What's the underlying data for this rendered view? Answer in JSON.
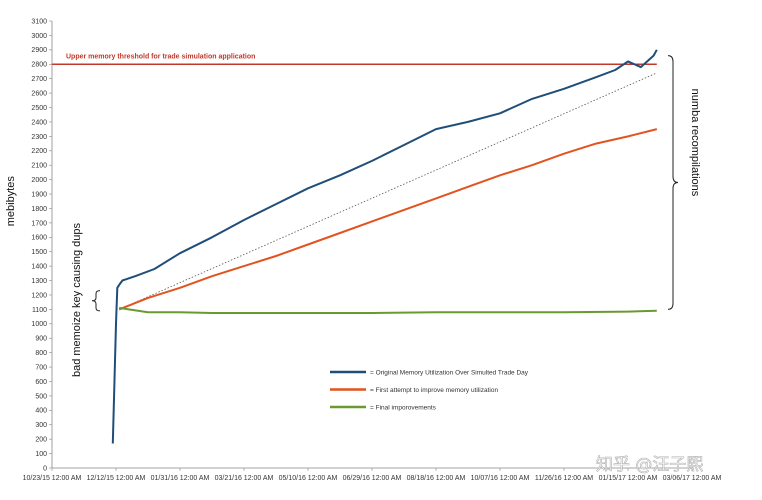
{
  "chart_data": {
    "type": "line",
    "ylabel": "mebibytes",
    "ylim": [
      0,
      3100
    ],
    "y_ticks": [
      0,
      100,
      200,
      300,
      400,
      500,
      600,
      700,
      800,
      900,
      1000,
      1100,
      1200,
      1300,
      1400,
      1500,
      1600,
      1700,
      1800,
      1900,
      2000,
      2100,
      2200,
      2300,
      2400,
      2500,
      2600,
      2700,
      2800,
      2900,
      3000,
      3100
    ],
    "x_ticks": [
      "10/23/15 12:00 AM",
      "12/12/15 12:00 AM",
      "01/31/16 12:00 AM",
      "03/21/16 12:00 AM",
      "05/10/16 12:00 AM",
      "06/29/16 12:00 AM",
      "08/18/16 12:00 AM",
      "10/07/16 12:00 AM",
      "11/26/16 12:00 AM",
      "01/15/17 12:00 AM",
      "03/06/17 12:00 AM"
    ],
    "threshold": {
      "value": 2800,
      "label": "Upper memory threshold for trade simulation application",
      "color": "#c0392b"
    },
    "series": [
      {
        "name": "= Original Memory Utilization Over Simulted Trade Day",
        "color": "#1f4e79",
        "x": [
          0.95,
          1.0,
          1.02,
          1.05,
          1.1,
          1.3,
          1.6,
          2.0,
          2.5,
          3.0,
          3.5,
          4.0,
          4.5,
          5.0,
          5.5,
          6.0,
          6.5,
          7.0,
          7.5,
          8.0,
          8.5,
          8.8,
          9.0,
          9.2,
          9.4,
          9.45
        ],
        "y": [
          170,
          1000,
          1250,
          1270,
          1300,
          1330,
          1380,
          1490,
          1600,
          1720,
          1830,
          1940,
          2030,
          2130,
          2240,
          2350,
          2400,
          2460,
          2560,
          2630,
          2710,
          2760,
          2820,
          2780,
          2860,
          2900
        ]
      },
      {
        "name": "= First attempt to improve memory utilization",
        "color": "#e2531f",
        "x": [
          1.05,
          1.5,
          2.0,
          2.5,
          3.0,
          3.5,
          4.0,
          4.5,
          5.0,
          5.5,
          6.0,
          6.5,
          7.0,
          7.5,
          8.0,
          8.5,
          9.0,
          9.45
        ],
        "y": [
          1100,
          1180,
          1250,
          1330,
          1400,
          1470,
          1550,
          1630,
          1710,
          1790,
          1870,
          1950,
          2030,
          2100,
          2180,
          2250,
          2300,
          2350
        ]
      },
      {
        "name": "= Final imporovements",
        "color": "#6a9a2f",
        "x": [
          1.05,
          1.2,
          1.5,
          2.0,
          2.5,
          3.0,
          3.5,
          4.0,
          5.0,
          6.0,
          7.0,
          8.0,
          9.0,
          9.45
        ],
        "y": [
          1110,
          1100,
          1080,
          1080,
          1075,
          1075,
          1075,
          1075,
          1075,
          1080,
          1080,
          1080,
          1085,
          1090
        ]
      }
    ],
    "trend_line": {
      "x": [
        1.05,
        9.45
      ],
      "y": [
        1100,
        2740
      ],
      "color": "#555555",
      "style": "dotted"
    },
    "annotations": [
      {
        "text": "numba recompilations"
      },
      {
        "text": "bad memoize key causing dups"
      }
    ],
    "legend_placement": "center-bottom",
    "grid": false
  },
  "watermark": "知乎 @汪子熙"
}
